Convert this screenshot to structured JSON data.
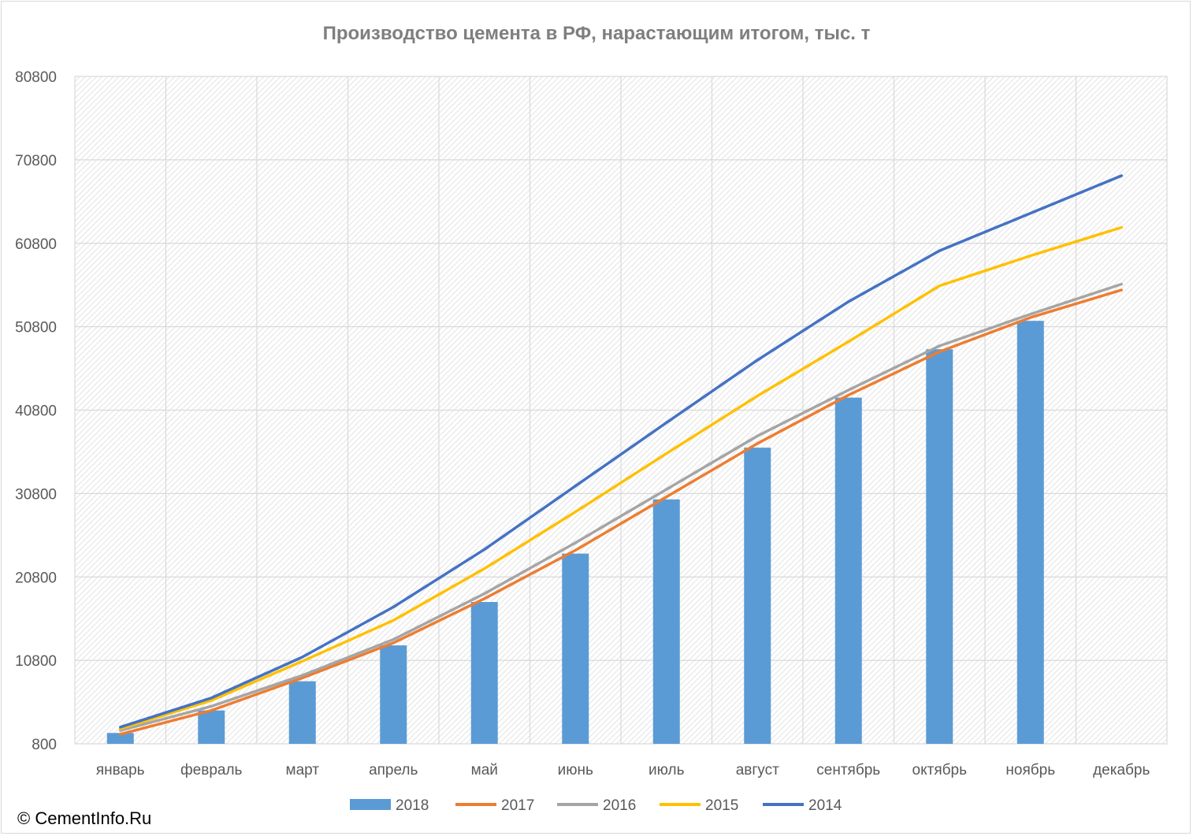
{
  "copyright": "© CementInfo.Ru",
  "chart_data": {
    "type": "bar+line",
    "title": "Производство цемента в РФ, нарастающим итогом, тыс. т",
    "xlabel": "",
    "ylabel": "",
    "categories": [
      "январь",
      "февраль",
      "март",
      "апрель",
      "май",
      "июнь",
      "июль",
      "август",
      "сентябрь",
      "октябрь",
      "ноябрь",
      "декабрь"
    ],
    "ylim": [
      800,
      80800
    ],
    "yticks": [
      "800",
      "10800",
      "20800",
      "30800",
      "40800",
      "50800",
      "60800",
      "70800",
      "80800"
    ],
    "grid": true,
    "legend": "bottom",
    "series": [
      {
        "name": "2018",
        "type": "bar",
        "color": "#5b9bd5",
        "values": [
          2100,
          4800,
          8300,
          12600,
          17800,
          23600,
          30100,
          36300,
          42300,
          48100,
          51500,
          null
        ]
      },
      {
        "name": "2017",
        "type": "line",
        "color": "#ed7d31",
        "values": [
          1950,
          4800,
          8700,
          12900,
          18200,
          24000,
          30400,
          36800,
          42600,
          47800,
          51900,
          55200
        ]
      },
      {
        "name": "2016",
        "type": "line",
        "color": "#a5a5a5",
        "values": [
          2400,
          5300,
          9000,
          13300,
          18800,
          24900,
          31300,
          37700,
          43200,
          48500,
          52300,
          55900
        ]
      },
      {
        "name": "2015",
        "type": "line",
        "color": "#ffc000",
        "values": [
          2600,
          6000,
          10700,
          15600,
          21800,
          28600,
          35600,
          42500,
          49000,
          55700,
          59300,
          62700
        ]
      },
      {
        "name": "2014",
        "type": "line",
        "color": "#4472c4",
        "values": [
          2800,
          6300,
          11200,
          17200,
          24100,
          31700,
          39300,
          46800,
          53800,
          59900,
          64400,
          68900
        ]
      }
    ]
  }
}
